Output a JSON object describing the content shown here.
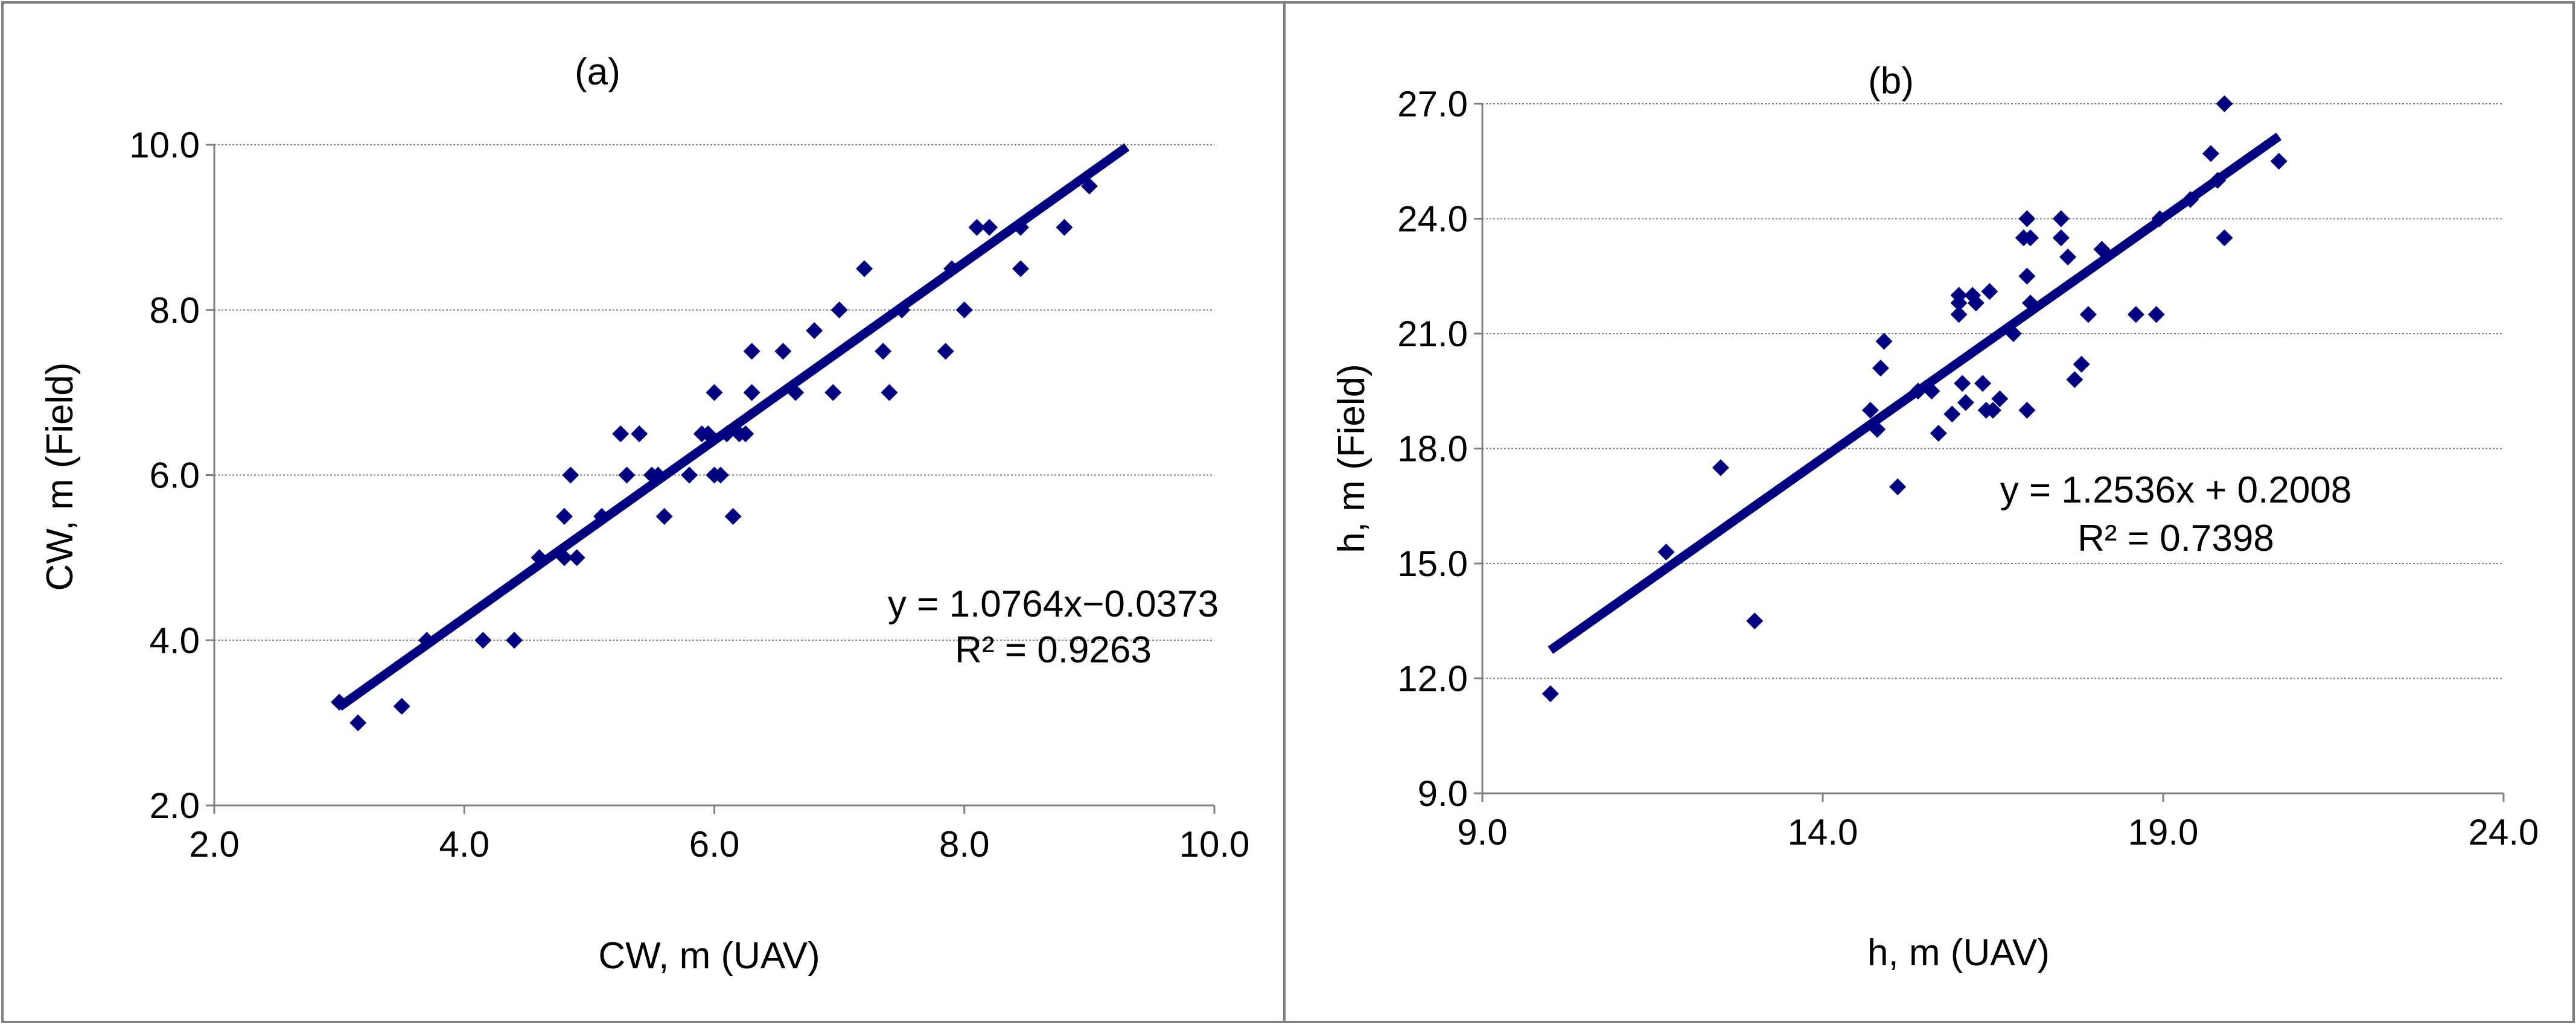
{
  "chart_data": [
    {
      "type": "scatter",
      "title": "(a)",
      "xlabel": "CW, m (UAV)",
      "ylabel": "CW, m (Field)",
      "xlim": [
        2.0,
        10.0
      ],
      "ylim": [
        2.0,
        10.0
      ],
      "xticks": [
        2.0,
        4.0,
        6.0,
        8.0,
        10.0
      ],
      "yticks": [
        2.0,
        4.0,
        6.0,
        8.0,
        10.0
      ],
      "x_tick_labels": [
        "2.0",
        "4.0",
        "6.0",
        "8.0",
        "10.0"
      ],
      "y_tick_labels": [
        "2.0",
        "4.0",
        "6.0",
        "8.0",
        "10.0"
      ],
      "horizontal_grid": true,
      "equation": "y = 1.0764x−0.0373",
      "r2": "R² = 0.9263",
      "trendline": {
        "slope": 1.0764,
        "intercept": -0.0373,
        "x_range": [
          3.0,
          9.3
        ]
      },
      "marker_color": "#000080",
      "line_color": "#000080",
      "points": [
        [
          3.0,
          3.25
        ],
        [
          3.15,
          3.0
        ],
        [
          3.5,
          3.2
        ],
        [
          3.7,
          4.0
        ],
        [
          4.15,
          4.0
        ],
        [
          4.4,
          4.0
        ],
        [
          4.6,
          5.0
        ],
        [
          4.8,
          5.0
        ],
        [
          4.8,
          5.5
        ],
        [
          4.85,
          6.0
        ],
        [
          4.9,
          5.0
        ],
        [
          5.1,
          5.5
        ],
        [
          5.25,
          6.5
        ],
        [
          5.3,
          6.0
        ],
        [
          5.4,
          6.5
        ],
        [
          5.5,
          6.0
        ],
        [
          5.55,
          6.0
        ],
        [
          5.6,
          5.5
        ],
        [
          5.8,
          6.0
        ],
        [
          5.9,
          6.5
        ],
        [
          5.95,
          6.5
        ],
        [
          6.0,
          7.0
        ],
        [
          6.0,
          6.0
        ],
        [
          6.05,
          6.0
        ],
        [
          6.1,
          6.5
        ],
        [
          6.15,
          5.5
        ],
        [
          6.2,
          6.5
        ],
        [
          6.25,
          6.5
        ],
        [
          6.3,
          7.0
        ],
        [
          6.3,
          7.5
        ],
        [
          6.55,
          7.5
        ],
        [
          6.65,
          7.0
        ],
        [
          6.8,
          7.75
        ],
        [
          6.95,
          7.0
        ],
        [
          7.0,
          8.0
        ],
        [
          7.2,
          8.5
        ],
        [
          7.35,
          7.5
        ],
        [
          7.4,
          7.0
        ],
        [
          7.5,
          8.0
        ],
        [
          7.85,
          7.5
        ],
        [
          7.9,
          8.5
        ],
        [
          8.0,
          8.0
        ],
        [
          8.1,
          9.0
        ],
        [
          8.2,
          9.0
        ],
        [
          8.45,
          9.0
        ],
        [
          8.45,
          8.5
        ],
        [
          8.8,
          9.0
        ],
        [
          9.0,
          9.5
        ]
      ]
    },
    {
      "type": "scatter",
      "title": "(b)",
      "xlabel": "h, m (UAV)",
      "ylabel": "h, m (Field)",
      "xlim": [
        9.0,
        24.0
      ],
      "ylim": [
        9.0,
        27.0
      ],
      "xticks": [
        9.0,
        14.0,
        19.0,
        24.0
      ],
      "yticks": [
        9.0,
        12.0,
        15.0,
        18.0,
        21.0,
        24.0,
        27.0
      ],
      "x_tick_labels": [
        "9.0",
        "14.0",
        "19.0",
        "24.0"
      ],
      "y_tick_labels": [
        "9.0",
        "12.0",
        "15.0",
        "18.0",
        "21.0",
        "24.0",
        "27.0"
      ],
      "horizontal_grid": true,
      "equation": "y = 1.2536x + 0.2008",
      "r2": "R² = 0.7398",
      "trendline": {
        "slope": 1.2536,
        "intercept": 0.2008,
        "x_range": [
          10.0,
          20.7
        ]
      },
      "marker_color": "#000080",
      "line_color": "#000080",
      "points": [
        [
          10.0,
          11.6
        ],
        [
          11.7,
          15.3
        ],
        [
          12.5,
          17.5
        ],
        [
          13.0,
          13.5
        ],
        [
          14.7,
          19.0
        ],
        [
          14.8,
          18.5
        ],
        [
          14.85,
          20.1
        ],
        [
          14.9,
          20.8
        ],
        [
          15.1,
          17.0
        ],
        [
          15.4,
          19.5
        ],
        [
          15.6,
          19.5
        ],
        [
          15.7,
          18.4
        ],
        [
          15.9,
          18.9
        ],
        [
          16.0,
          21.8
        ],
        [
          16.0,
          22.0
        ],
        [
          16.0,
          21.5
        ],
        [
          16.05,
          19.7
        ],
        [
          16.1,
          19.2
        ],
        [
          16.2,
          22.0
        ],
        [
          16.25,
          21.8
        ],
        [
          16.35,
          19.7
        ],
        [
          16.4,
          19.0
        ],
        [
          16.45,
          22.1
        ],
        [
          16.5,
          19.0
        ],
        [
          16.6,
          19.3
        ],
        [
          16.8,
          21.0
        ],
        [
          16.95,
          23.5
        ],
        [
          17.0,
          24.0
        ],
        [
          17.05,
          23.5
        ],
        [
          17.0,
          22.5
        ],
        [
          17.05,
          21.8
        ],
        [
          17.0,
          19.0
        ],
        [
          17.5,
          24.0
        ],
        [
          17.5,
          23.5
        ],
        [
          17.6,
          23.0
        ],
        [
          17.7,
          19.8
        ],
        [
          17.8,
          20.2
        ],
        [
          17.9,
          21.5
        ],
        [
          18.1,
          23.2
        ],
        [
          18.6,
          21.5
        ],
        [
          18.9,
          21.5
        ],
        [
          18.95,
          24.0
        ],
        [
          19.4,
          24.5
        ],
        [
          19.7,
          25.7
        ],
        [
          19.8,
          25.0
        ],
        [
          19.9,
          23.5
        ],
        [
          19.9,
          27.0
        ],
        [
          20.7,
          25.5
        ]
      ]
    }
  ]
}
